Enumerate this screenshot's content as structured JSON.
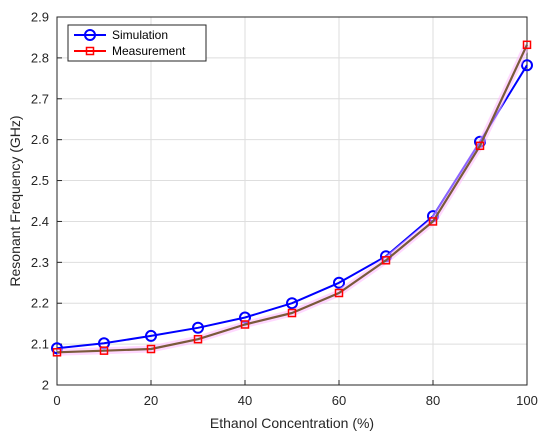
{
  "chart_data": {
    "type": "line",
    "xlabel": "Ethanol Concentration (%)",
    "ylabel": "Resonant Frequency (GHz)",
    "xlim": [
      0,
      100
    ],
    "ylim": [
      2,
      2.9
    ],
    "xticks": [
      0,
      20,
      40,
      60,
      80,
      100
    ],
    "yticks": [
      2,
      2.1,
      2.2,
      2.3,
      2.4,
      2.5,
      2.6,
      2.7,
      2.8,
      2.9
    ],
    "grid": true,
    "legend_position": "top-left",
    "x": [
      0,
      10,
      20,
      30,
      40,
      50,
      60,
      70,
      80,
      90,
      100
    ],
    "series": [
      {
        "name": "Simulation",
        "color": "#0000ff",
        "marker": "circle",
        "values": [
          2.09,
          2.102,
          2.12,
          2.14,
          2.165,
          2.2,
          2.25,
          2.315,
          2.413,
          2.595,
          2.782
        ]
      },
      {
        "name": "Measurement",
        "color": "#ff0000",
        "marker": "square",
        "values": [
          2.08,
          2.084,
          2.088,
          2.112,
          2.148,
          2.176,
          2.225,
          2.305,
          2.4,
          2.585,
          2.832
        ]
      }
    ]
  }
}
